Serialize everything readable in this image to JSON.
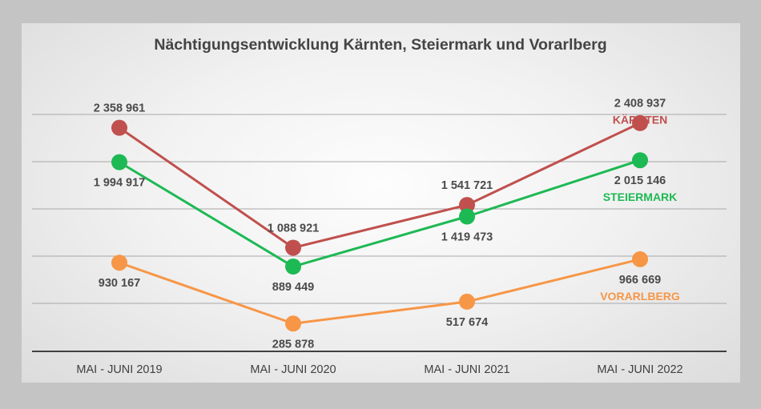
{
  "chart_data": {
    "type": "line",
    "title": "Nächtigungsentwicklung Kärnten, Steiermark und Vorarlberg",
    "categories": [
      "MAI - JUNI 2019",
      "MAI - JUNI 2020",
      "MAI - JUNI 2021",
      "MAI - JUNI 2022"
    ],
    "ylim": [
      0,
      3000000
    ],
    "grid": true,
    "legend": "inline labels at right end of each series",
    "series": [
      {
        "name": "KÄRNTEN",
        "color": "#c0504d",
        "values": [
          2358961,
          1088921,
          1541721,
          2408937
        ],
        "labels": [
          "2 358 961",
          "1 088 921",
          "1 541 721",
          "2 408 937"
        ],
        "label_position": [
          "above",
          "above",
          "above",
          "above"
        ]
      },
      {
        "name": "STEIERMARK",
        "color": "#1db954",
        "values": [
          1994917,
          889449,
          1419473,
          2015146
        ],
        "labels": [
          "1 994 917",
          "889 449",
          "1 419 473",
          "2 015 146"
        ],
        "label_position": [
          "below",
          "below",
          "below",
          "below"
        ]
      },
      {
        "name": "VORARLBERG",
        "color": "#f79646",
        "values": [
          930167,
          285878,
          517674,
          966669
        ],
        "labels": [
          "930 167",
          "285 878",
          "517 674",
          "966 669"
        ],
        "label_position": [
          "below",
          "below",
          "below",
          "below"
        ]
      }
    ]
  }
}
